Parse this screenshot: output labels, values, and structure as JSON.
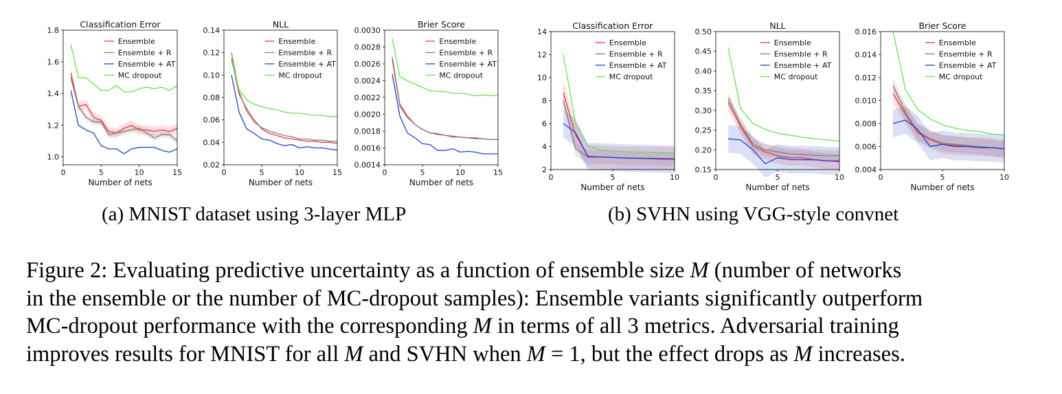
{
  "figure": {
    "subcaption_a": "(a)  MNIST dataset using 3-layer MLP",
    "subcaption_b": "(b)  SVHN using VGG-style convnet",
    "caption_lines": [
      [
        {
          "t": "Figure 2:  Evaluating predictive uncertainty as a function of ensemble size "
        },
        {
          "t": "M",
          "m": true
        },
        {
          "t": " (number of networks"
        }
      ],
      [
        {
          "t": "in the ensemble or the number of MC-dropout samples): Ensemble variants significantly outperform"
        }
      ],
      [
        {
          "t": "MC-dropout performance with the corresponding "
        },
        {
          "t": "M",
          "m": true
        },
        {
          "t": " in terms of all 3 metrics. Adversarial training"
        }
      ],
      [
        {
          "t": "improves results for MNIST for all "
        },
        {
          "t": "M",
          "m": true
        },
        {
          "t": " and SVHN when "
        },
        {
          "t": "M",
          "m": true
        },
        {
          "t": " = 1, but the effect drops as "
        },
        {
          "t": "M",
          "m": true
        },
        {
          "t": " increases."
        }
      ]
    ]
  },
  "colors": {
    "Ensemble": "#e8383d",
    "Ensemble + R": "#7f7f7f",
    "Ensemble + AT": "#1f3fd0",
    "MC dropout": "#5ee843"
  },
  "chart_data": [
    {
      "type": "line",
      "panel": "a",
      "title": "Classification Error",
      "xlabel": "Number of nets",
      "ylabel": "",
      "xlim": [
        0,
        15
      ],
      "ylim": [
        0.95,
        1.8
      ],
      "xticks": [
        0,
        5,
        10,
        15
      ],
      "xtick_labels": [
        "0",
        "5",
        "10",
        "15"
      ],
      "yticks": [
        1.0,
        1.2,
        1.4,
        1.6,
        1.8
      ],
      "ytick_labels": [
        "1.0",
        "1.2",
        "1.4",
        "1.6",
        "1.8"
      ],
      "legend": "top-right",
      "grid": false,
      "x": [
        1,
        2,
        3,
        4,
        5,
        6,
        7,
        8,
        9,
        10,
        11,
        12,
        13,
        14,
        15
      ],
      "series": [
        {
          "name": "Ensemble",
          "values": [
            1.53,
            1.32,
            1.33,
            1.25,
            1.23,
            1.16,
            1.15,
            1.18,
            1.2,
            1.17,
            1.17,
            1.16,
            1.17,
            1.16,
            1.18
          ],
          "band": 0.03
        },
        {
          "name": "Ensemble + R",
          "values": [
            1.5,
            1.32,
            1.25,
            1.22,
            1.22,
            1.14,
            1.15,
            1.16,
            1.17,
            1.18,
            1.15,
            1.12,
            1.14,
            1.14,
            1.1
          ],
          "band": 0.02
        },
        {
          "name": "Ensemble + AT",
          "values": [
            1.42,
            1.2,
            1.17,
            1.15,
            1.07,
            1.05,
            1.05,
            1.02,
            1.05,
            1.06,
            1.06,
            1.06,
            1.04,
            1.03,
            1.05
          ]
        },
        {
          "name": "MC dropout",
          "values": [
            1.71,
            1.5,
            1.5,
            1.46,
            1.42,
            1.42,
            1.45,
            1.41,
            1.41,
            1.43,
            1.44,
            1.43,
            1.44,
            1.42,
            1.45
          ]
        }
      ]
    },
    {
      "type": "line",
      "panel": "a",
      "title": "NLL",
      "xlabel": "Number of nets",
      "ylabel": "",
      "xlim": [
        0,
        15
      ],
      "ylim": [
        0.02,
        0.14
      ],
      "xticks": [
        0,
        5,
        10,
        15
      ],
      "xtick_labels": [
        "0",
        "5",
        "10",
        "15"
      ],
      "yticks": [
        0.02,
        0.04,
        0.06,
        0.08,
        0.1,
        0.12,
        0.14
      ],
      "ytick_labels": [
        "0.02",
        "0.04",
        "0.06",
        "0.08",
        "0.10",
        "0.12",
        "0.14"
      ],
      "legend": "top-right",
      "grid": false,
      "x": [
        1,
        2,
        3,
        4,
        5,
        6,
        7,
        8,
        9,
        10,
        11,
        12,
        13,
        14,
        15
      ],
      "series": [
        {
          "name": "Ensemble",
          "values": [
            0.115,
            0.083,
            0.07,
            0.06,
            0.052,
            0.048,
            0.046,
            0.044,
            0.043,
            0.042,
            0.041,
            0.041,
            0.04,
            0.04,
            0.039
          ]
        },
        {
          "name": "Ensemble + R",
          "values": [
            0.12,
            0.085,
            0.068,
            0.058,
            0.053,
            0.05,
            0.048,
            0.046,
            0.045,
            0.043,
            0.043,
            0.042,
            0.042,
            0.041,
            0.041
          ]
        },
        {
          "name": "Ensemble + AT",
          "values": [
            0.1,
            0.067,
            0.052,
            0.048,
            0.043,
            0.042,
            0.039,
            0.037,
            0.038,
            0.035,
            0.036,
            0.035,
            0.035,
            0.034,
            0.033
          ]
        },
        {
          "name": "MC dropout",
          "values": [
            0.113,
            0.087,
            0.078,
            0.074,
            0.072,
            0.07,
            0.069,
            0.067,
            0.066,
            0.066,
            0.065,
            0.064,
            0.064,
            0.063,
            0.063
          ]
        }
      ]
    },
    {
      "type": "line",
      "panel": "a",
      "title": "Brier Score",
      "xlabel": "Number of nets",
      "ylabel": "",
      "xlim": [
        0,
        15
      ],
      "ylim": [
        0.0014,
        0.003
      ],
      "xticks": [
        0,
        5,
        10,
        15
      ],
      "xtick_labels": [
        "0",
        "5",
        "10",
        "15"
      ],
      "yticks": [
        0.0014,
        0.0016,
        0.0018,
        0.002,
        0.0022,
        0.0024,
        0.0026,
        0.0028,
        0.003
      ],
      "ytick_labels": [
        "0.0014",
        "0.0016",
        "0.0018",
        "0.0020",
        "0.0022",
        "0.0024",
        "0.0026",
        "0.0028",
        "0.0030"
      ],
      "legend": "top-right",
      "grid": false,
      "x": [
        1,
        2,
        3,
        4,
        5,
        6,
        7,
        8,
        9,
        10,
        11,
        12,
        13,
        14,
        15
      ],
      "series": [
        {
          "name": "Ensemble",
          "values": [
            0.00268,
            0.00212,
            0.00198,
            0.00188,
            0.00182,
            0.00178,
            0.00176,
            0.00175,
            0.00173,
            0.00173,
            0.00172,
            0.00172,
            0.00171,
            0.0017,
            0.0017
          ]
        },
        {
          "name": "Ensemble + R",
          "values": [
            0.00265,
            0.0021,
            0.00196,
            0.00188,
            0.00182,
            0.00178,
            0.00177,
            0.00175,
            0.00174,
            0.00173,
            0.00172,
            0.00171,
            0.00171,
            0.0017,
            0.0017
          ]
        },
        {
          "name": "Ensemble + AT",
          "values": [
            0.00248,
            0.00198,
            0.00178,
            0.00172,
            0.00165,
            0.00164,
            0.00157,
            0.00157,
            0.00159,
            0.00155,
            0.00156,
            0.00155,
            0.00153,
            0.00153,
            0.00153
          ]
        },
        {
          "name": "MC dropout",
          "values": [
            0.0029,
            0.00245,
            0.0024,
            0.00236,
            0.00232,
            0.00228,
            0.00227,
            0.00227,
            0.00225,
            0.00225,
            0.00224,
            0.00222,
            0.00223,
            0.00222,
            0.00223
          ]
        }
      ]
    },
    {
      "type": "line",
      "panel": "b",
      "title": "Classification Error",
      "xlabel": "Number of nets",
      "ylabel": "",
      "xlim": [
        0,
        10
      ],
      "ylim": [
        2,
        14
      ],
      "xticks": [
        0,
        5,
        10
      ],
      "xtick_labels": [
        "0",
        "5",
        "10"
      ],
      "yticks": [
        2,
        4,
        6,
        8,
        10,
        12,
        14
      ],
      "ytick_labels": [
        "2",
        "4",
        "6",
        "8",
        "10",
        "12",
        "14"
      ],
      "legend": "top-right",
      "grid": false,
      "x": [
        1,
        2,
        3,
        4,
        5,
        6,
        7,
        8,
        9,
        10
      ],
      "series": [
        {
          "name": "Ensemble",
          "values": [
            8.7,
            5.0,
            3.15,
            3.1,
            3.05,
            3.0,
            3.0,
            2.98,
            2.97,
            2.95
          ],
          "band": 1.0
        },
        {
          "name": "Ensemble + R",
          "values": [
            8.0,
            3.8,
            3.1,
            3.1,
            3.05,
            3.0,
            2.98,
            2.95,
            2.93,
            2.9
          ],
          "band": 0.6
        },
        {
          "name": "Ensemble + AT",
          "values": [
            6.0,
            5.2,
            3.1,
            3.1,
            3.05,
            3.0,
            2.98,
            2.95,
            2.9,
            2.9
          ],
          "band": 1.2
        },
        {
          "name": "MC dropout",
          "values": [
            12.0,
            6.0,
            4.0,
            3.7,
            3.6,
            3.55,
            3.5,
            3.5,
            3.45,
            3.45
          ]
        }
      ]
    },
    {
      "type": "line",
      "panel": "b",
      "title": "NLL",
      "xlabel": "Number of nets",
      "ylabel": "",
      "xlim": [
        0,
        10
      ],
      "ylim": [
        0.15,
        0.5
      ],
      "xticks": [
        0,
        5,
        10
      ],
      "xtick_labels": [
        "0",
        "5",
        "10"
      ],
      "yticks": [
        0.15,
        0.2,
        0.25,
        0.3,
        0.35,
        0.4,
        0.45,
        0.5
      ],
      "ytick_labels": [
        "0.15",
        "0.20",
        "0.25",
        "0.30",
        "0.35",
        "0.40",
        "0.45",
        "0.50"
      ],
      "legend": "top-right",
      "grid": false,
      "x": [
        1,
        2,
        3,
        4,
        5,
        6,
        7,
        8,
        9,
        10
      ],
      "series": [
        {
          "name": "Ensemble",
          "values": [
            0.32,
            0.26,
            0.21,
            0.195,
            0.185,
            0.18,
            0.18,
            0.175,
            0.172,
            0.17
          ],
          "band": 0.02
        },
        {
          "name": "Ensemble + R",
          "values": [
            0.33,
            0.265,
            0.215,
            0.2,
            0.195,
            0.19,
            0.188,
            0.186,
            0.185,
            0.185
          ],
          "band": 0.015
        },
        {
          "name": "Ensemble + AT",
          "values": [
            0.228,
            0.225,
            0.2,
            0.165,
            0.18,
            0.175,
            0.175,
            0.175,
            0.172,
            0.172
          ],
          "band": 0.035
        },
        {
          "name": "MC dropout",
          "values": [
            0.46,
            0.305,
            0.267,
            0.252,
            0.242,
            0.237,
            0.232,
            0.228,
            0.225,
            0.222
          ]
        }
      ]
    },
    {
      "type": "line",
      "panel": "b",
      "title": "Brier Score",
      "xlabel": "Number of nets",
      "ylabel": "",
      "xlim": [
        0,
        10
      ],
      "ylim": [
        0.004,
        0.016
      ],
      "xticks": [
        0,
        5,
        10
      ],
      "xtick_labels": [
        "0",
        "5",
        "10"
      ],
      "yticks": [
        0.004,
        0.006,
        0.008,
        0.01,
        0.012,
        0.014,
        0.016
      ],
      "ytick_labels": [
        "0.004",
        "0.006",
        "0.008",
        "0.010",
        "0.012",
        "0.014",
        "0.016"
      ],
      "legend": "top-right",
      "grid": false,
      "x": [
        1,
        2,
        3,
        4,
        5,
        6,
        7,
        8,
        9,
        10
      ],
      "series": [
        {
          "name": "Ensemble",
          "values": [
            0.0106,
            0.0088,
            0.0072,
            0.0066,
            0.0062,
            0.0061,
            0.006,
            0.006,
            0.0059,
            0.0058
          ],
          "band": 0.0008
        },
        {
          "name": "Ensemble + R",
          "values": [
            0.0113,
            0.009,
            0.0073,
            0.0067,
            0.0063,
            0.0062,
            0.0061,
            0.006,
            0.0059,
            0.0058
          ],
          "band": 0.0007
        },
        {
          "name": "Ensemble + AT",
          "values": [
            0.008,
            0.0083,
            0.0075,
            0.006,
            0.0062,
            0.006,
            0.006,
            0.0059,
            0.0059,
            0.0058
          ],
          "band": 0.0012
        },
        {
          "name": "MC dropout",
          "values": [
            0.016,
            0.011,
            0.0092,
            0.0084,
            0.0079,
            0.0076,
            0.0074,
            0.0073,
            0.0071,
            0.007
          ]
        }
      ]
    }
  ]
}
